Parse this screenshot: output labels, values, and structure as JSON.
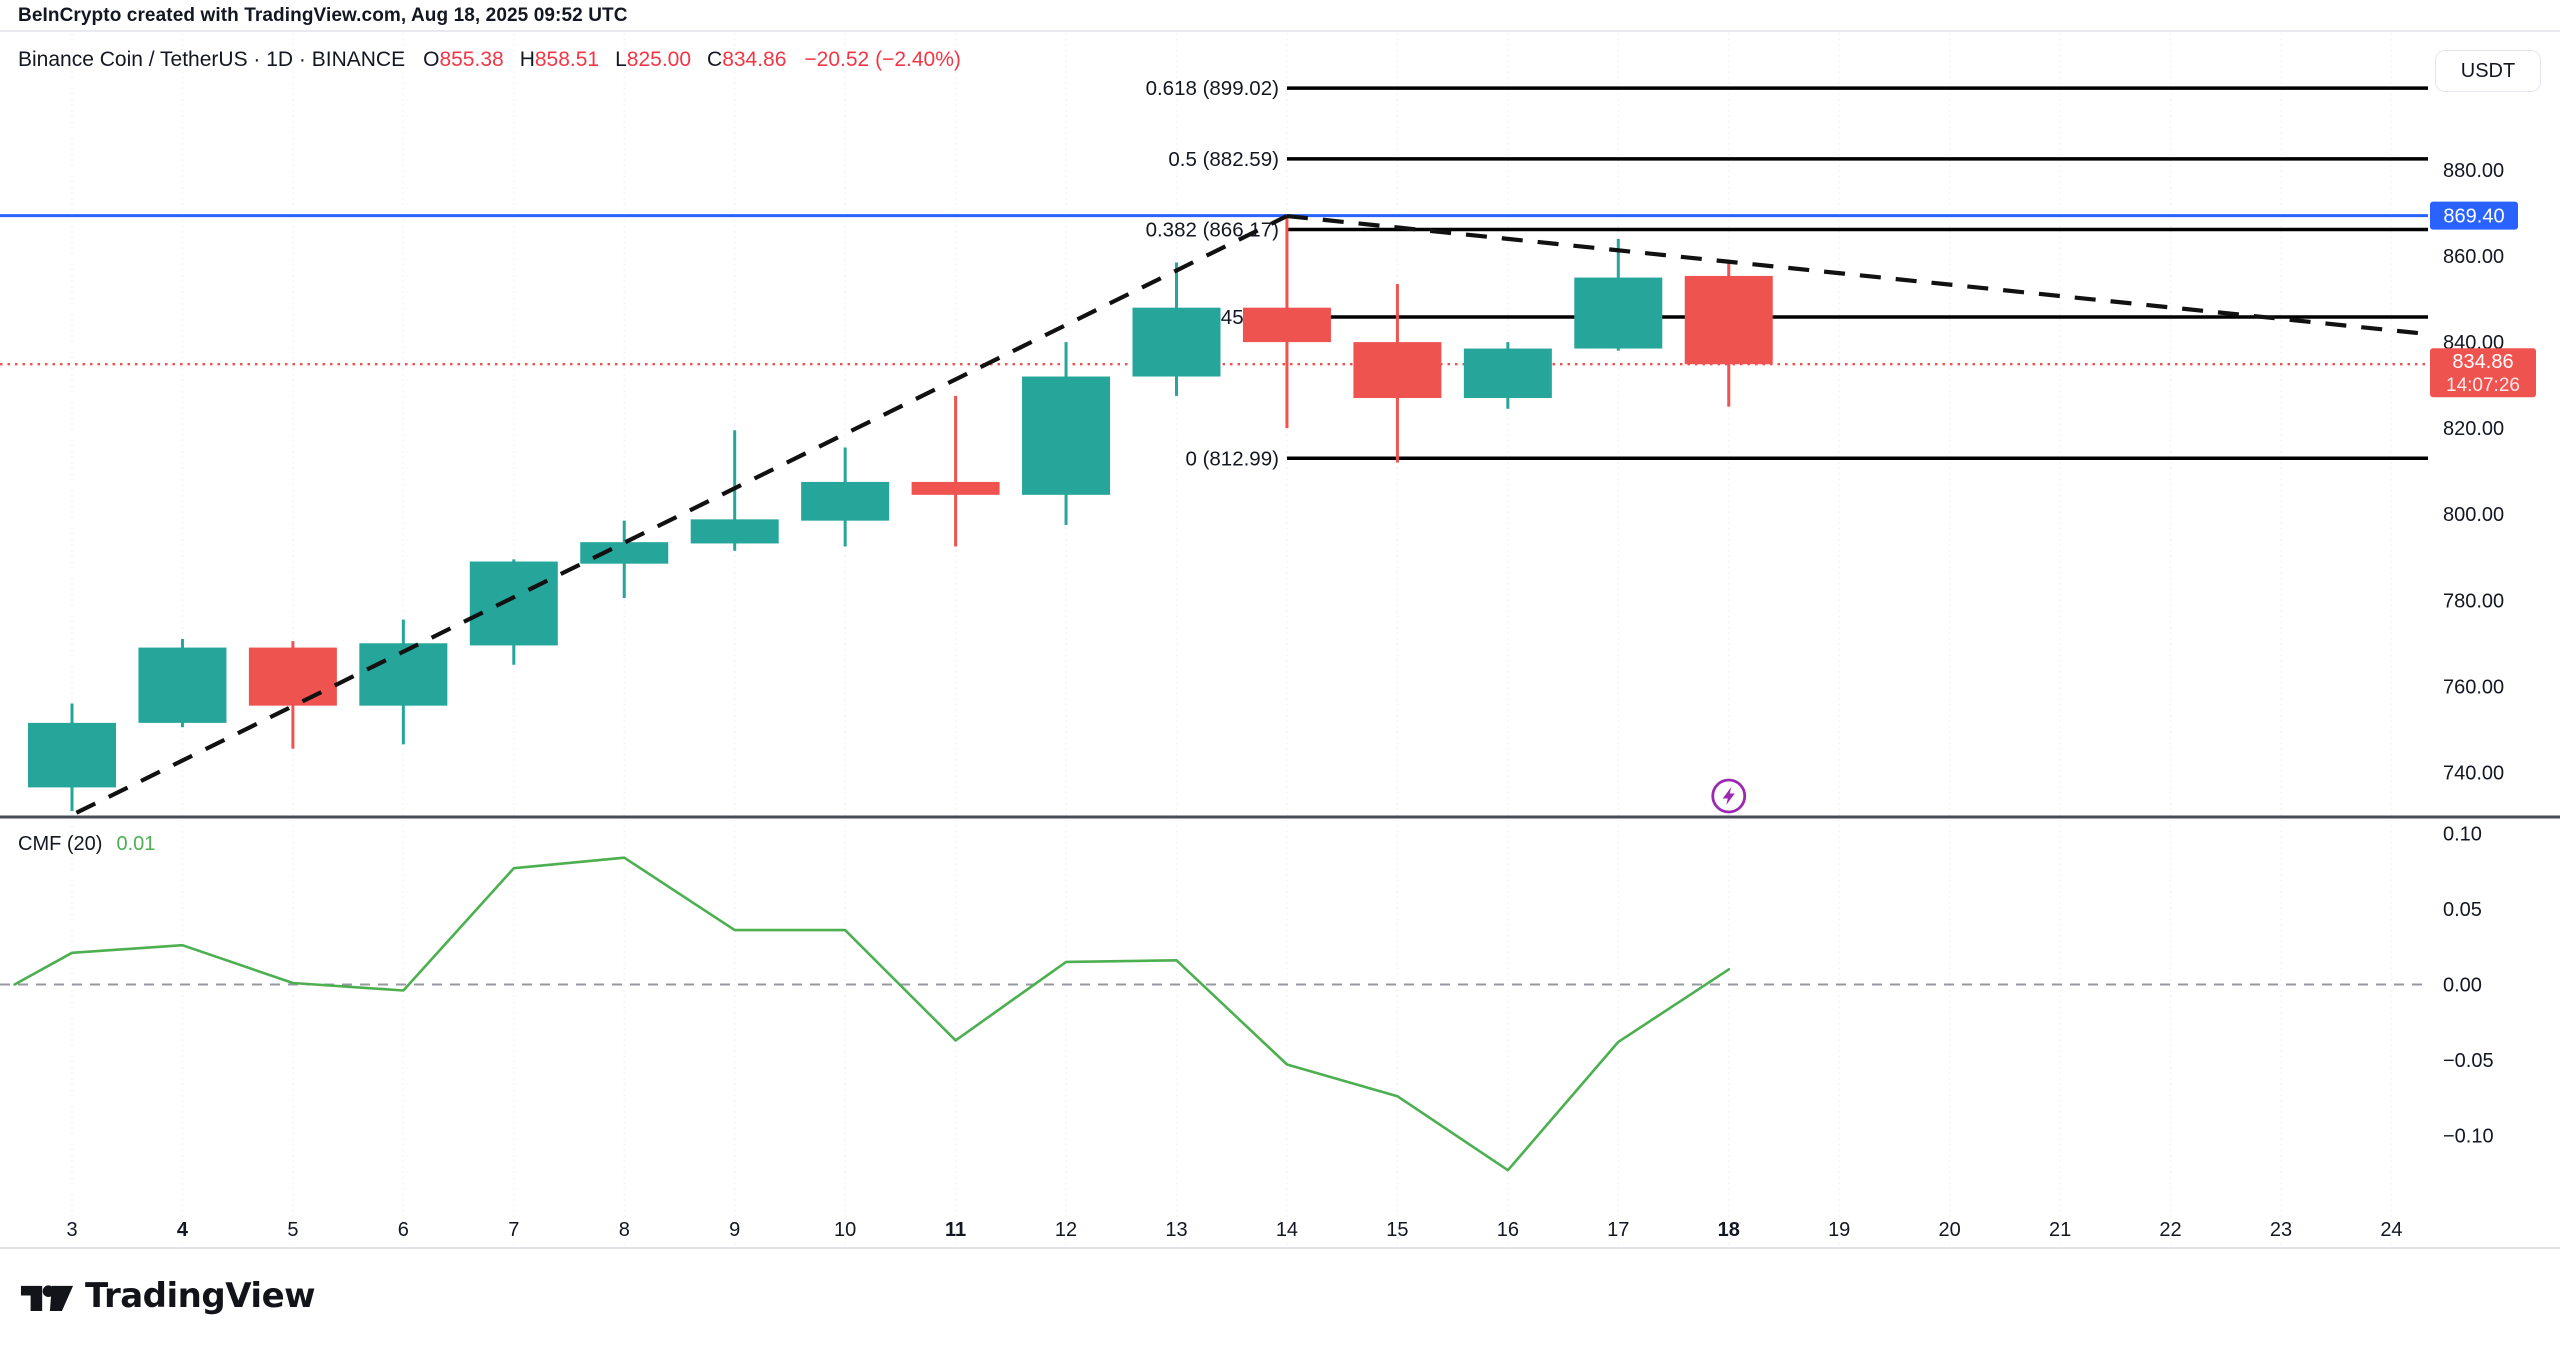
{
  "header": {
    "credit": "BeInCrypto created with TradingView.com, Aug 18, 2025 09:52 UTC"
  },
  "toolbar": {
    "currency_label": "USDT"
  },
  "legend": {
    "title": "Binance Coin / TetherUS · 1D · BINANCE",
    "ohlc": [
      {
        "k": "O",
        "v": "855.38"
      },
      {
        "k": "H",
        "v": "858.51"
      },
      {
        "k": "L",
        "v": "825.00"
      },
      {
        "k": "C",
        "v": "834.86"
      }
    ],
    "change": "−20.52 (−2.40%)"
  },
  "indicator": {
    "label": "CMF (20)",
    "value": "0.01"
  },
  "footer": {
    "brand": "TradingView"
  },
  "colors": {
    "up": "#26a69a",
    "down": "#ef5350",
    "blue_line": "#2962ff",
    "last_price": "#ef5350",
    "fib": "#000000",
    "trend": "#111111",
    "cmf_line": "#4caf50",
    "zero_line": "#9598a1",
    "grid": "#eef1f6",
    "text": "#131722",
    "axis_text": "#131722",
    "separator": "#474c57",
    "border": "#e0e3eb",
    "accent_purple": "#9c27b0",
    "tag_text": "#ffffff"
  },
  "chart_data": {
    "type": "candlestick",
    "title": "Binance Coin / TetherUS 1D BINANCE with CMF(20)",
    "x_axis": {
      "labels": [
        "3",
        "4",
        "5",
        "6",
        "7",
        "8",
        "9",
        "10",
        "11",
        "12",
        "13",
        "14",
        "15",
        "16",
        "17",
        "18",
        "19",
        "20",
        "21",
        "22",
        "23",
        "24"
      ],
      "bold_labels": [
        "4",
        "11",
        "18"
      ]
    },
    "price_axis": {
      "labels": [
        {
          "t": "880.00",
          "v": 880
        },
        {
          "t": "860.00",
          "v": 860
        },
        {
          "t": "840.00",
          "v": 840
        },
        {
          "t": "820.00",
          "v": 820
        },
        {
          "t": "800.00",
          "v": 800
        },
        {
          "t": "780.00",
          "v": 780
        },
        {
          "t": "760.00",
          "v": 760
        },
        {
          "t": "740.00",
          "v": 740
        }
      ],
      "visible_range": [
        729.5,
        912.5
      ]
    },
    "candles": [
      {
        "day": 3,
        "o": 736.5,
        "h": 756.0,
        "l": 731.0,
        "c": 751.5
      },
      {
        "day": 4,
        "o": 751.5,
        "h": 771.0,
        "l": 750.5,
        "c": 769.0
      },
      {
        "day": 5,
        "o": 769.0,
        "h": 770.5,
        "l": 745.5,
        "c": 755.5
      },
      {
        "day": 6,
        "o": 755.5,
        "h": 775.5,
        "l": 746.5,
        "c": 770.0
      },
      {
        "day": 7,
        "o": 769.5,
        "h": 789.5,
        "l": 765.0,
        "c": 789.0
      },
      {
        "day": 8,
        "o": 788.5,
        "h": 798.5,
        "l": 780.5,
        "c": 793.5
      },
      {
        "day": 9,
        "o": 793.2,
        "h": 819.5,
        "l": 791.5,
        "c": 798.8
      },
      {
        "day": 10,
        "o": 798.5,
        "h": 815.5,
        "l": 792.5,
        "c": 807.5
      },
      {
        "day": 11,
        "o": 807.5,
        "h": 827.5,
        "l": 792.5,
        "c": 804.5
      },
      {
        "day": 12,
        "o": 804.5,
        "h": 840.0,
        "l": 797.5,
        "c": 832.0
      },
      {
        "day": 13,
        "o": 832.0,
        "h": 858.5,
        "l": 827.5,
        "c": 848.0
      },
      {
        "day": 14,
        "o": 848.0,
        "h": 869.4,
        "l": 820.0,
        "c": 840.0
      },
      {
        "day": 15,
        "o": 840.0,
        "h": 853.5,
        "l": 812.0,
        "c": 827.0
      },
      {
        "day": 16,
        "o": 827.0,
        "h": 840.0,
        "l": 824.5,
        "c": 838.5
      },
      {
        "day": 17,
        "o": 838.5,
        "h": 864.0,
        "l": 838.0,
        "c": 855.0
      },
      {
        "day": 18,
        "o": 855.38,
        "h": 858.51,
        "l": 825.0,
        "c": 834.86
      }
    ],
    "fib_levels": [
      {
        "label": "0.618 (899.02)",
        "value": 899.02
      },
      {
        "label": "0.5 (882.59)",
        "value": 882.59
      },
      {
        "label": "0.382 (866.17)",
        "value": 866.17
      },
      {
        "label": "0.236 (845.83)",
        "value": 845.83
      },
      {
        "label": "0 (812.99)",
        "value": 812.99
      }
    ],
    "fib_anchor_day": 14,
    "horizontal_line": {
      "value": 869.4,
      "label": "869.40"
    },
    "last_price": {
      "value": 834.86,
      "label": "834.86",
      "time": "14:07:26"
    },
    "trendlines": [
      {
        "x1_day": 3.04,
        "y1_price": 730.6,
        "x2_day": 14.0,
        "y2_price": 869.3
      },
      {
        "x1_day": 14.0,
        "y1_price": 869.3,
        "x2_day": 24.28,
        "y2_price": 842.0
      }
    ],
    "event_marker": {
      "day": 18,
      "icon": "lightning-icon"
    },
    "cmf": {
      "name": "CMF (20)",
      "last_value": 0.01,
      "days": [
        2.48,
        3,
        4,
        5,
        6,
        7,
        8,
        9,
        10,
        11,
        12,
        13,
        14,
        15,
        16,
        17,
        18
      ],
      "values": [
        0.0,
        0.021,
        0.026,
        0.001,
        -0.004,
        0.077,
        0.084,
        0.036,
        0.036,
        -0.037,
        0.015,
        0.016,
        -0.053,
        -0.074,
        -0.123,
        -0.038,
        0.01
      ],
      "axis_labels": [
        {
          "t": "0.10",
          "v": 0.1
        },
        {
          "t": "0.05",
          "v": 0.05
        },
        {
          "t": "0.00",
          "v": 0.0
        },
        {
          "t": "−0.05",
          "v": -0.05
        },
        {
          "t": "−0.10",
          "v": -0.1
        }
      ],
      "zero_line": 0
    }
  }
}
